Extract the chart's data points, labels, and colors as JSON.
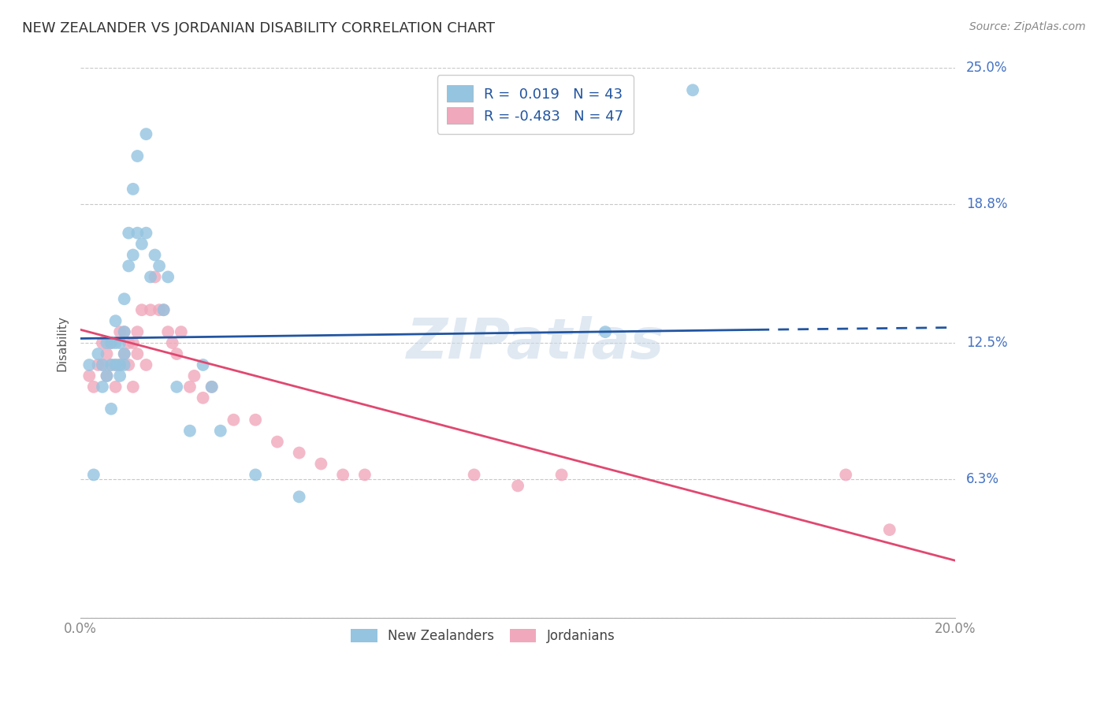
{
  "title": "NEW ZEALANDER VS JORDANIAN DISABILITY CORRELATION CHART",
  "source": "Source: ZipAtlas.com",
  "ylabel": "Disability",
  "xmin": 0.0,
  "xmax": 0.2,
  "ymin": 0.0,
  "ymax": 0.25,
  "yticks": [
    0.0,
    0.063,
    0.125,
    0.188,
    0.25
  ],
  "ytick_labels": [
    "",
    "6.3%",
    "12.5%",
    "18.8%",
    "25.0%"
  ],
  "xticks": [
    0.0,
    0.05,
    0.1,
    0.15,
    0.2
  ],
  "xtick_labels": [
    "0.0%",
    "",
    "",
    "",
    "20.0%"
  ],
  "background_color": "#ffffff",
  "grid_color": "#c8c8c8",
  "blue_color": "#94c4e0",
  "pink_color": "#f0a8bc",
  "blue_line_color": "#2255a0",
  "pink_line_color": "#e04870",
  "legend_r_blue": " 0.019",
  "legend_n_blue": "43",
  "legend_r_pink": "-0.483",
  "legend_n_pink": "47",
  "watermark": "ZIPatlas",
  "nz_x": [
    0.002,
    0.003,
    0.004,
    0.005,
    0.005,
    0.006,
    0.006,
    0.007,
    0.007,
    0.007,
    0.008,
    0.008,
    0.008,
    0.009,
    0.009,
    0.009,
    0.01,
    0.01,
    0.01,
    0.01,
    0.011,
    0.011,
    0.012,
    0.012,
    0.013,
    0.013,
    0.014,
    0.015,
    0.015,
    0.016,
    0.017,
    0.018,
    0.019,
    0.02,
    0.022,
    0.025,
    0.028,
    0.03,
    0.032,
    0.04,
    0.05,
    0.12,
    0.14
  ],
  "nz_y": [
    0.115,
    0.065,
    0.12,
    0.105,
    0.115,
    0.11,
    0.125,
    0.095,
    0.115,
    0.125,
    0.115,
    0.125,
    0.135,
    0.11,
    0.115,
    0.125,
    0.115,
    0.12,
    0.13,
    0.145,
    0.16,
    0.175,
    0.165,
    0.195,
    0.175,
    0.21,
    0.17,
    0.175,
    0.22,
    0.155,
    0.165,
    0.16,
    0.14,
    0.155,
    0.105,
    0.085,
    0.115,
    0.105,
    0.085,
    0.065,
    0.055,
    0.13,
    0.24
  ],
  "jo_x": [
    0.002,
    0.003,
    0.004,
    0.005,
    0.005,
    0.006,
    0.006,
    0.007,
    0.007,
    0.008,
    0.008,
    0.009,
    0.009,
    0.01,
    0.01,
    0.011,
    0.011,
    0.012,
    0.012,
    0.013,
    0.013,
    0.014,
    0.015,
    0.016,
    0.017,
    0.018,
    0.019,
    0.02,
    0.021,
    0.022,
    0.023,
    0.025,
    0.026,
    0.028,
    0.03,
    0.035,
    0.04,
    0.045,
    0.05,
    0.055,
    0.06,
    0.065,
    0.09,
    0.1,
    0.11,
    0.175,
    0.185
  ],
  "jo_y": [
    0.11,
    0.105,
    0.115,
    0.115,
    0.125,
    0.11,
    0.12,
    0.115,
    0.125,
    0.105,
    0.115,
    0.115,
    0.13,
    0.12,
    0.13,
    0.115,
    0.125,
    0.105,
    0.125,
    0.12,
    0.13,
    0.14,
    0.115,
    0.14,
    0.155,
    0.14,
    0.14,
    0.13,
    0.125,
    0.12,
    0.13,
    0.105,
    0.11,
    0.1,
    0.105,
    0.09,
    0.09,
    0.08,
    0.075,
    0.07,
    0.065,
    0.065,
    0.065,
    0.06,
    0.065,
    0.065,
    0.04
  ],
  "nz_line_x": [
    0.0,
    0.155,
    0.2
  ],
  "nz_line_y": [
    0.127,
    0.131,
    0.132
  ],
  "jo_line_x": [
    0.0,
    0.2
  ],
  "jo_line_y": [
    0.131,
    0.026
  ]
}
